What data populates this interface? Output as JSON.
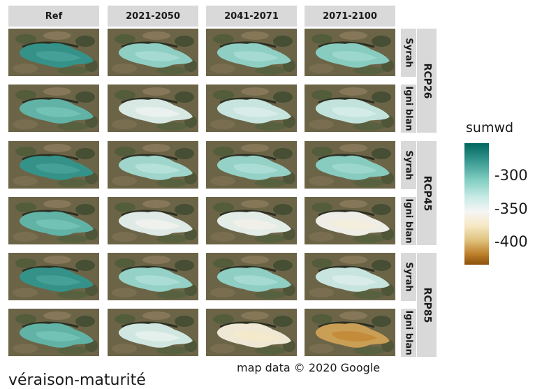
{
  "columns": [
    "Ref",
    "2021-2050",
    "2041-2071",
    "2071-2100"
  ],
  "scenarios": [
    "RCP26",
    "RCP45",
    "RCP85"
  ],
  "varieties": [
    "Syrah",
    "Igni blan"
  ],
  "legend": {
    "title": "sumwd",
    "ticks": [
      "-300",
      "-350",
      "-400"
    ],
    "colors": [
      "#01665e",
      "#35978f",
      "#80cdc1",
      "#c7eae5",
      "#f5f5f5",
      "#f6e8c3",
      "#dfc27d",
      "#bf812d",
      "#8c510a"
    ]
  },
  "caption": "map data © 2020 Google",
  "bottom_title": "véraison-maturité",
  "panel_levels": [
    [
      -290,
      -320,
      -320,
      -318
    ],
    [
      -305,
      -345,
      -338,
      -336
    ],
    [
      -290,
      -325,
      -322,
      -318
    ],
    [
      -305,
      -348,
      -350,
      -356
    ],
    [
      -290,
      -322,
      -320,
      -338
    ],
    [
      -305,
      -342,
      -363,
      -398
    ]
  ]
}
